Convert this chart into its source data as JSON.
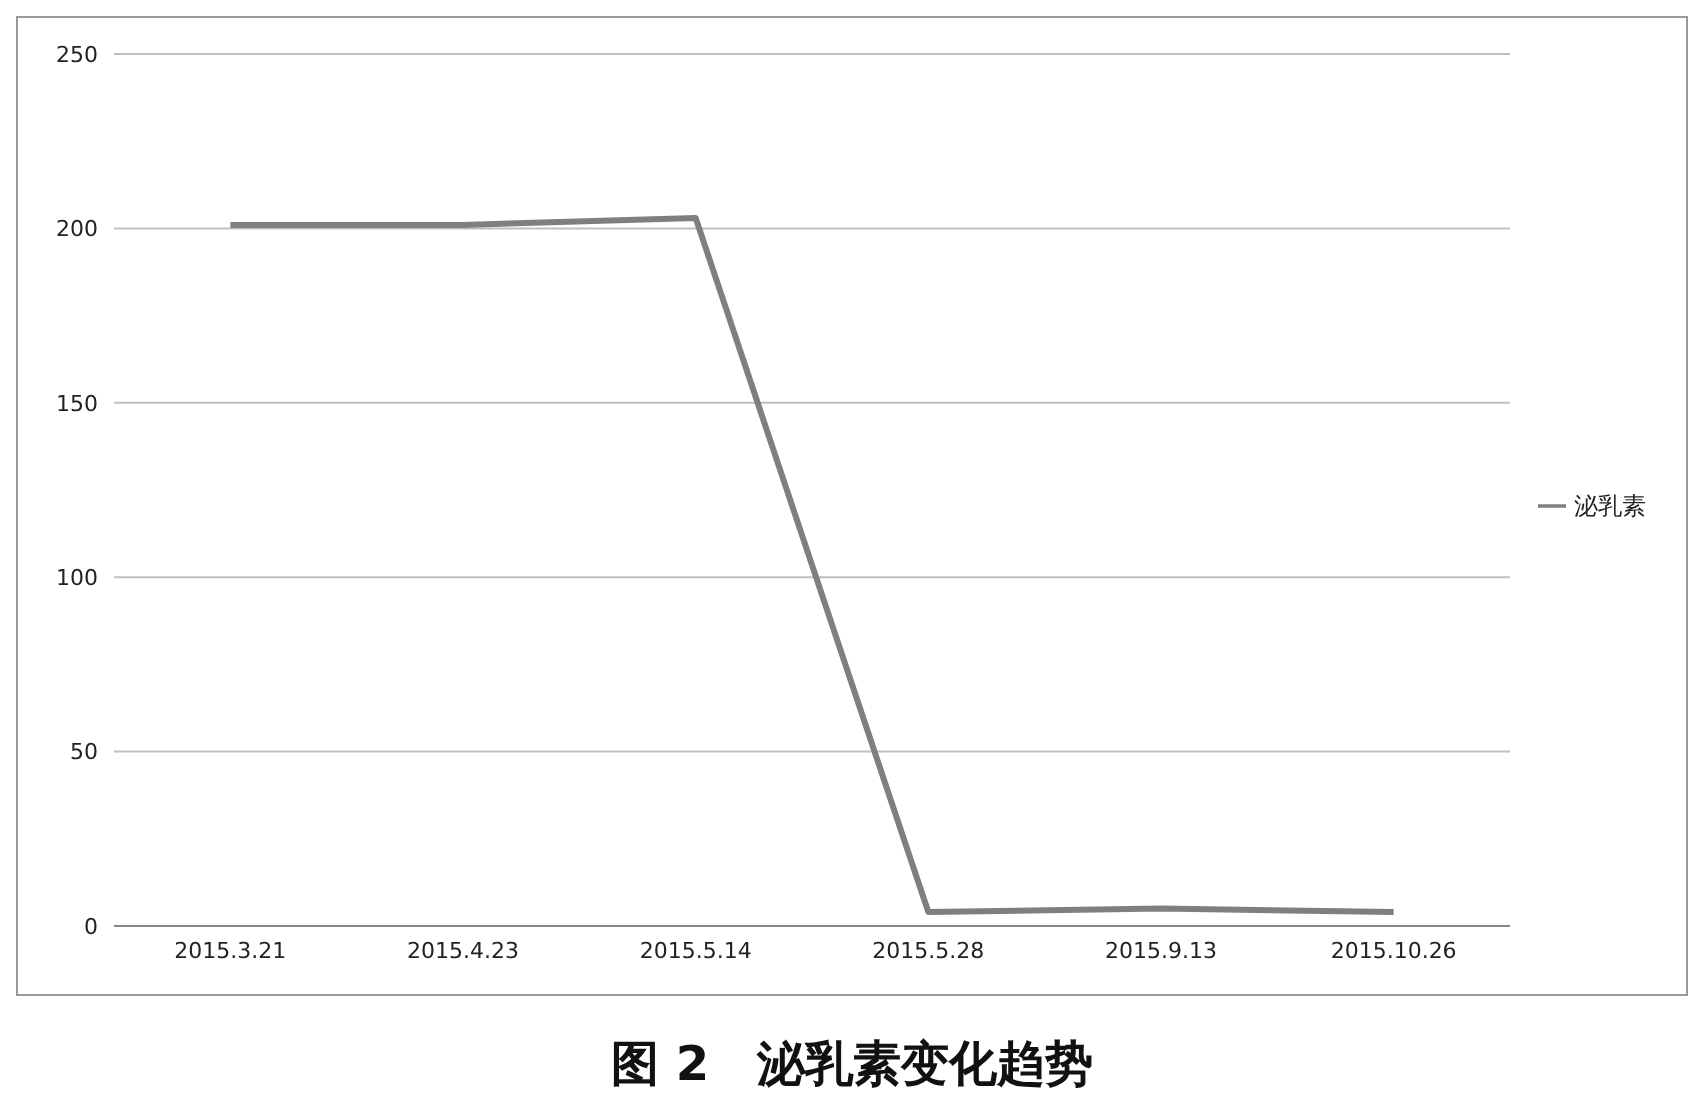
{
  "chart_data": {
    "type": "line",
    "title": "图 2　泌乳素变化趋势",
    "categories": [
      "2015.3.21",
      "2015.4.23",
      "2015.5.14",
      "2015.5.28",
      "2015.9.13",
      "2015.10.26"
    ],
    "series": [
      {
        "name": "泌乳素",
        "color": "#7f7f7f",
        "values": [
          201,
          201,
          203,
          4,
          5,
          4
        ]
      }
    ],
    "ylim": [
      0,
      250
    ],
    "yticks": [
      0,
      50,
      100,
      150,
      200,
      250
    ],
    "grid": "y",
    "legend": "right",
    "marker": "none",
    "line_style": "solid"
  }
}
